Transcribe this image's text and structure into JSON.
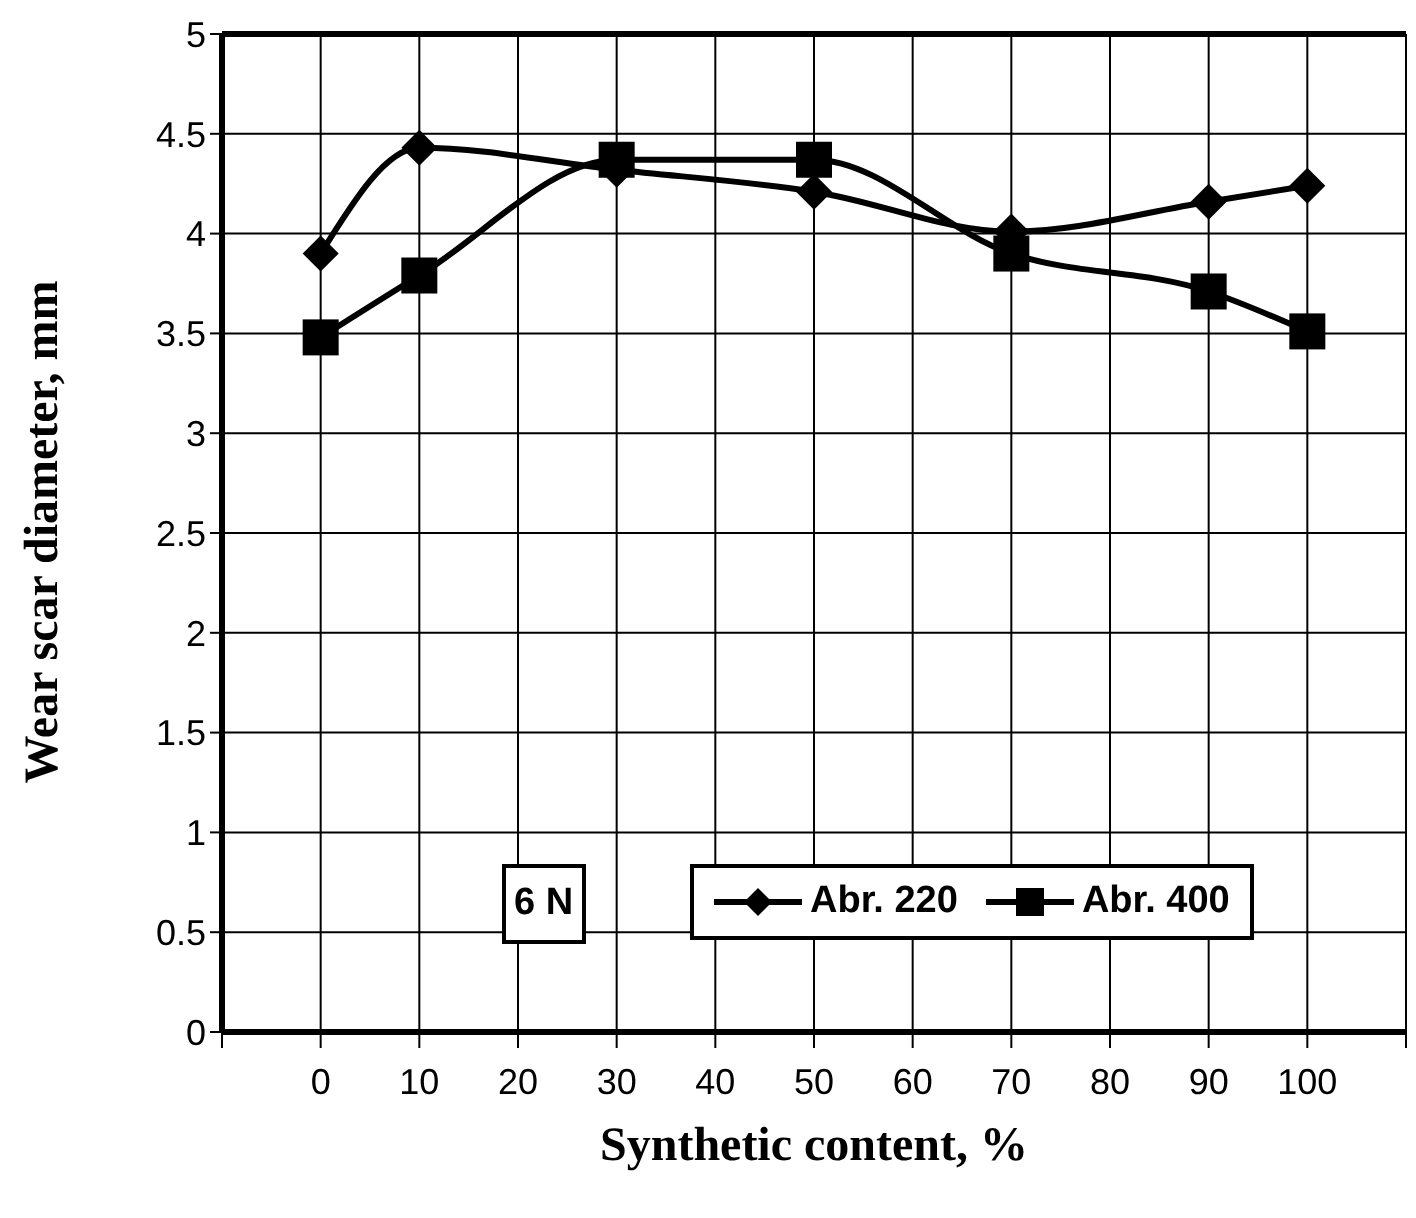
{
  "chart_data": {
    "type": "line",
    "xlabel": "Synthetic content, %",
    "ylabel": "Wear scar diameter, mm",
    "x": [
      0,
      10,
      30,
      50,
      70,
      90,
      100
    ],
    "series": [
      {
        "name": "Abr. 220",
        "color": "#000000",
        "marker": "diamond",
        "values": [
          3.9,
          4.43,
          4.32,
          4.21,
          4.01,
          4.16,
          4.24
        ]
      },
      {
        "name": "Abr. 400",
        "color": "#000000",
        "marker": "square",
        "values": [
          3.48,
          3.79,
          4.37,
          4.37,
          3.9,
          3.71,
          3.51
        ]
      }
    ],
    "xlim": [
      -10,
      110
    ],
    "xticks": [
      {
        "value": -10,
        "label": null
      },
      0,
      10,
      20,
      30,
      40,
      50,
      60,
      70,
      80,
      90,
      100,
      {
        "value": 110,
        "label": null
      }
    ],
    "ylim": [
      0,
      5
    ],
    "yticks": [
      0,
      0.5,
      1,
      1.5,
      2,
      2.5,
      3,
      3.5,
      4,
      4.5,
      5
    ],
    "grid": true,
    "legend": "right",
    "line_style": "solid",
    "annotations": [
      "6 N"
    ]
  }
}
